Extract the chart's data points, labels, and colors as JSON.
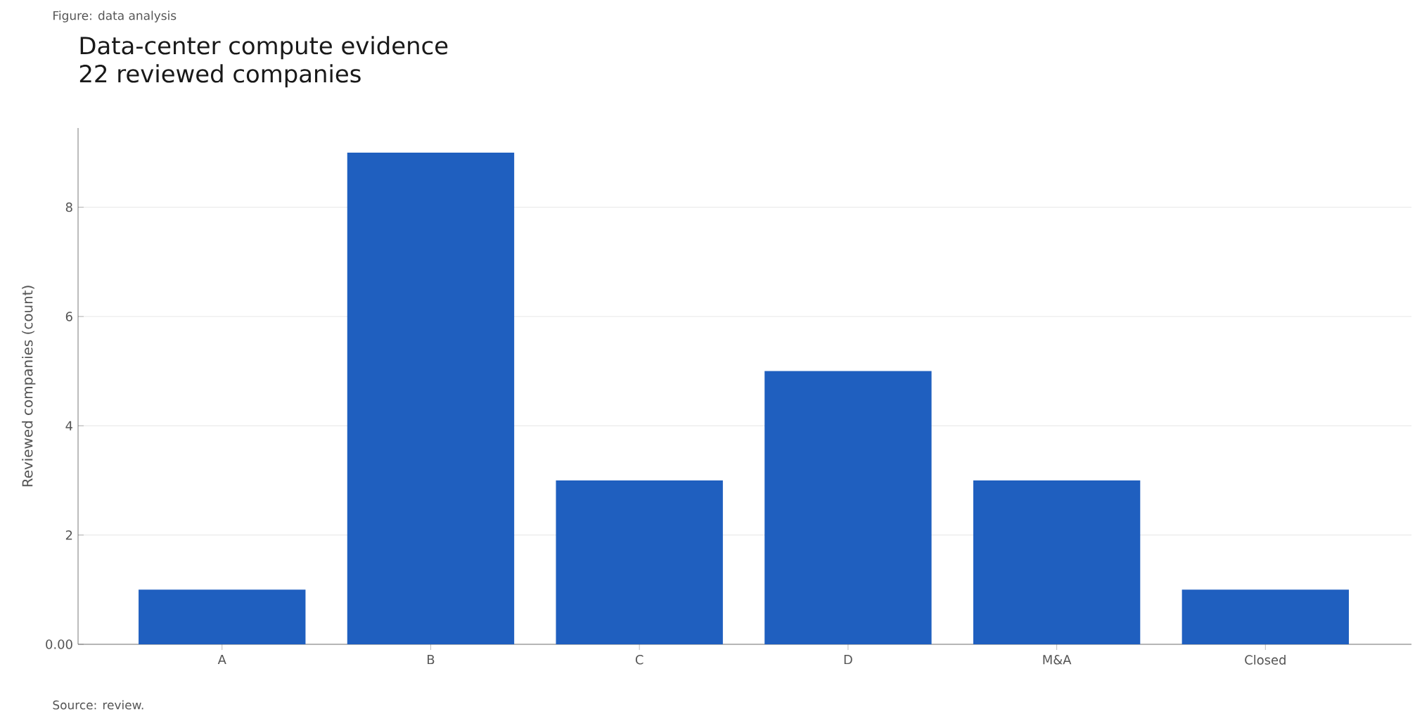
{
  "chart_data": {
    "type": "bar",
    "title": "Data-center compute evidence",
    "subtitle": "22 reviewed companies",
    "ylabel": "Reviewed companies (count)",
    "categories": [
      "A",
      "B",
      "C",
      "D",
      "M&A",
      "Closed"
    ],
    "values": [
      1,
      9,
      3,
      5,
      3,
      1
    ],
    "color": "#1f5fbf",
    "ylim": [
      0,
      9.45
    ],
    "yticks": [
      {
        "value": 0,
        "label": "0.00"
      },
      2,
      4,
      6,
      8
    ],
    "grid": "y",
    "annotations": [
      "Figure: data analysis",
      "Source: review."
    ]
  }
}
